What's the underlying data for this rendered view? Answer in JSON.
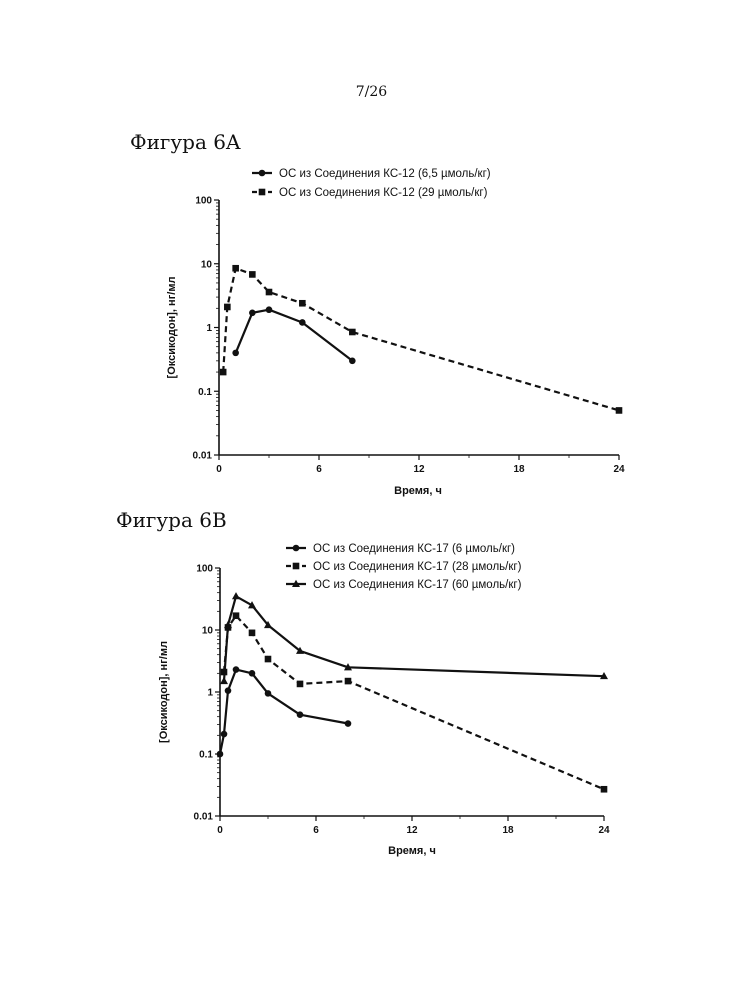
{
  "page_number": "7/26",
  "figures": [
    {
      "title": "Фигура 6A"
    },
    {
      "title": "Фигура 6B"
    }
  ],
  "chart_data": [
    {
      "type": "line",
      "title": "Фигура 6A",
      "xlabel": "Время, ч",
      "ylabel": "[Оксикодон], нг/мл",
      "yscale": "log",
      "xlim": [
        0,
        24
      ],
      "ylim": [
        0.01,
        100
      ],
      "xticks": [
        "0",
        "6",
        "12",
        "18",
        "24"
      ],
      "yticks": [
        "0.01",
        "0.1",
        "1",
        "10",
        "100"
      ],
      "grid": false,
      "legend_position": "top",
      "series": [
        {
          "name": "ОС из Соединения КС-12 (6,5 µмоль/кг)",
          "marker": "circle",
          "line": "solid",
          "x": [
            1,
            2,
            3,
            5,
            8
          ],
          "y": [
            0.4,
            1.7,
            1.9,
            1.2,
            0.3
          ]
        },
        {
          "name": "ОС из Соединения КС-12 (29 µмоль/кг)",
          "marker": "square",
          "line": "dashed",
          "x": [
            0.25,
            0.5,
            1,
            2,
            3,
            5,
            8,
            24
          ],
          "y": [
            0.2,
            2.1,
            8.5,
            6.8,
            3.6,
            2.4,
            0.85,
            0.05
          ]
        }
      ]
    },
    {
      "type": "line",
      "title": "Фигура 6B",
      "xlabel": "Время, ч",
      "ylabel": "[Оксикодон], нг/мл",
      "yscale": "log",
      "xlim": [
        0,
        24
      ],
      "ylim": [
        0.01,
        100
      ],
      "xticks": [
        "0",
        "6",
        "12",
        "18",
        "24"
      ],
      "yticks": [
        "0.01",
        "0.1",
        "1",
        "10",
        "100"
      ],
      "grid": false,
      "legend_position": "top",
      "series": [
        {
          "name": "ОС из Соединения КС-17 (6 µмоль/кг)",
          "marker": "circle",
          "line": "solid",
          "x": [
            0,
            0.25,
            0.5,
            1,
            2,
            3,
            5,
            8
          ],
          "y": [
            0.1,
            0.21,
            1.05,
            2.3,
            2.0,
            0.95,
            0.43,
            0.31
          ]
        },
        {
          "name": "ОС из Соединения КС-17 (28 µмоль/кг)",
          "marker": "square",
          "line": "dashed",
          "x": [
            0.25,
            0.5,
            1,
            2,
            3,
            5,
            8,
            24
          ],
          "y": [
            2.1,
            11,
            17,
            9,
            3.4,
            1.35,
            1.5,
            0.027
          ]
        },
        {
          "name": "ОС из Соединения КС-17 (60 µмоль/кг)",
          "marker": "triangle",
          "line": "solid",
          "x": [
            0.25,
            0.5,
            1,
            2,
            3,
            5,
            8,
            24
          ],
          "y": [
            1.5,
            12,
            35,
            25,
            12,
            4.6,
            2.5,
            1.8
          ]
        }
      ]
    }
  ]
}
